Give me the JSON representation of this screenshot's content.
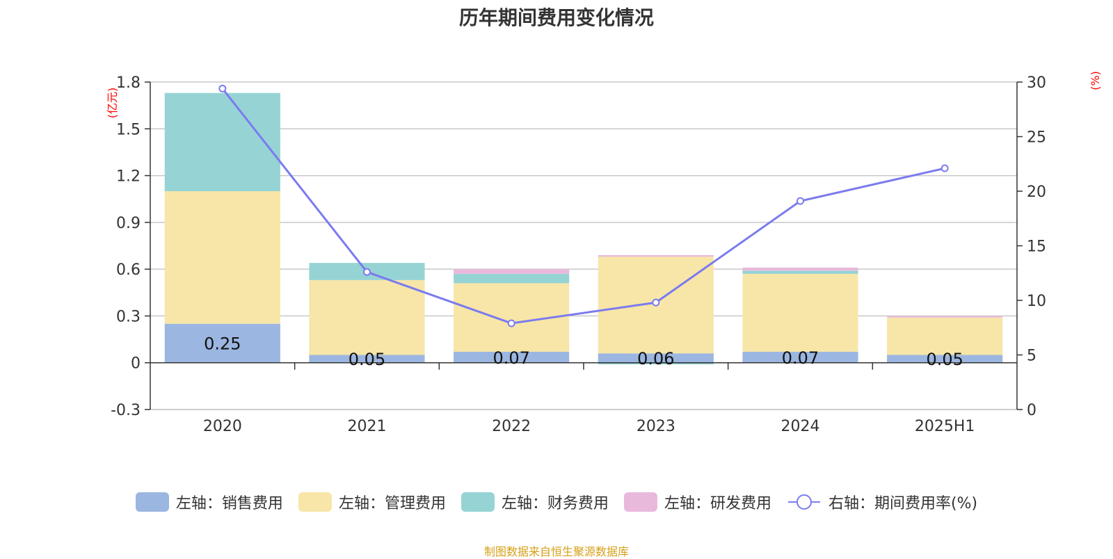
{
  "chart_data": {
    "type": "bar",
    "title": "历年期间费用变化情况",
    "categories": [
      "2020",
      "2021",
      "2022",
      "2023",
      "2024",
      "2025H1"
    ],
    "left_axis": {
      "unit": "(亿元)",
      "ticks": [
        "1.8",
        "1.5",
        "1.2",
        "0.9",
        "0.6",
        "0.3",
        "0",
        "-0.3"
      ],
      "ylim": [
        -0.3,
        1.8
      ]
    },
    "right_axis": {
      "unit": "(%)",
      "ticks": [
        "30",
        "25",
        "20",
        "15",
        "10",
        "5",
        "0"
      ],
      "ylim": [
        0,
        30
      ]
    },
    "series": [
      {
        "name": "左轴：销售费用",
        "color": "#9bb6e0",
        "values": [
          0.25,
          0.05,
          0.07,
          0.06,
          0.07,
          0.05
        ]
      },
      {
        "name": "左轴：管理费用",
        "color": "#f7e6a8",
        "values": [
          0.85,
          0.48,
          0.44,
          0.62,
          0.5,
          0.24
        ]
      },
      {
        "name": "左轴：财务费用",
        "color": "#96d3d4",
        "values": [
          0.63,
          0.11,
          0.06,
          -0.01,
          0.02,
          0.0
        ]
      },
      {
        "name": "左轴：研发费用",
        "color": "#e9b9dc",
        "values": [
          0.0,
          0.0,
          0.03,
          0.01,
          0.02,
          0.01
        ]
      }
    ],
    "bar_labels": [
      "0.25",
      "0.05",
      "0.07",
      "0.06",
      "0.07",
      "0.05"
    ],
    "line_series": {
      "name": "右轴：期间费用率(%)",
      "color": "#7b7bef",
      "values": [
        29.4,
        12.6,
        7.9,
        9.8,
        19.1,
        22.1
      ]
    },
    "grid": true,
    "legend_position": "bottom"
  },
  "source_note": "制图数据来自恒生聚源数据库"
}
